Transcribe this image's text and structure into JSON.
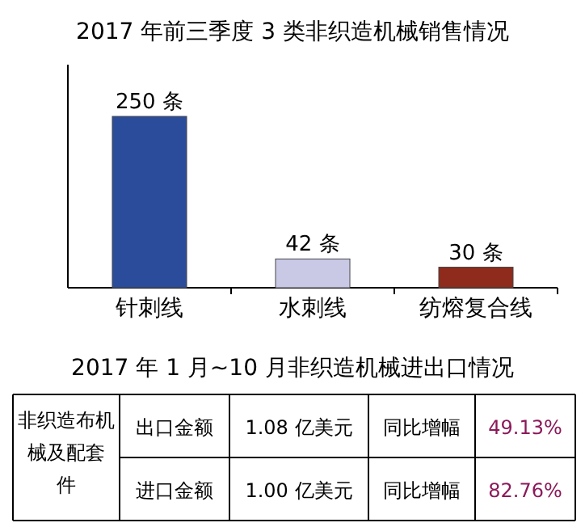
{
  "chart_data": [
    {
      "type": "bar",
      "title": "2017 年前三季度 3 类非织造机械销售情况",
      "categories": [
        "针刺线",
        "水刺线",
        "纺熔复合线"
      ],
      "values": [
        250,
        42,
        30
      ],
      "colors": [
        "#2b4c9b",
        "#c9c9e6",
        "#8e2b1c"
      ],
      "value_labels": [
        "250 条",
        "42 条",
        "30 条"
      ]
    },
    {
      "type": "other",
      "title": "2017 年 1 月~10 月非织造机械进出口情况",
      "annotations": [
        "非织造布机械及配套件",
        "出口金额",
        "1.08 亿美元",
        "同比增幅",
        "49.13%",
        "进口金额",
        "1.00 亿美元",
        "同比增幅",
        "82.76%"
      ]
    }
  ]
}
